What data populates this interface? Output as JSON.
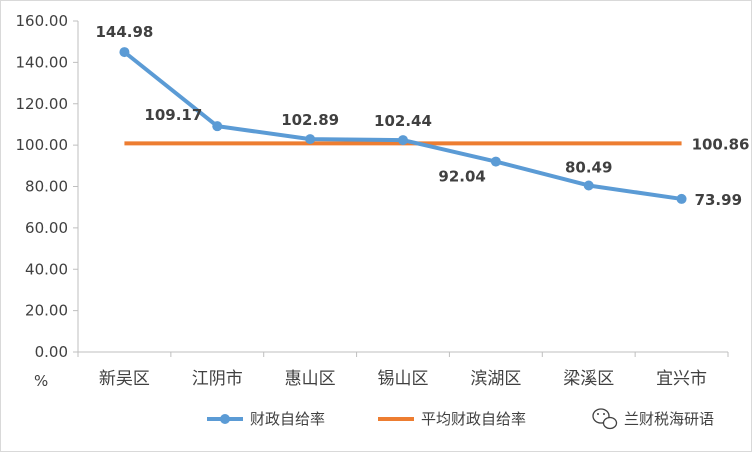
{
  "chart_data": {
    "type": "line",
    "categories": [
      "新吴区",
      "江阴市",
      "惠山区",
      "锡山区",
      "滨湖区",
      "梁溪区",
      "宜兴市"
    ],
    "series": [
      {
        "name": "财政自给率",
        "values": [
          144.98,
          109.17,
          102.89,
          102.44,
          92.04,
          80.49,
          73.99
        ],
        "labels": [
          "144.98",
          "109.17",
          "102.89",
          "102.44",
          "92.04",
          "80.49",
          "73.99"
        ],
        "color": "#5b9bd5",
        "marker": "circle"
      },
      {
        "name": "平均财政自给率",
        "values": [
          100.86,
          100.86,
          100.86,
          100.86,
          100.86,
          100.86,
          100.86
        ],
        "end_label": "100.86",
        "color": "#ed7d31"
      }
    ],
    "ylim": [
      0,
      160
    ],
    "yticks": [
      "0.00",
      "20.00",
      "40.00",
      "60.00",
      "80.00",
      "100.00",
      "120.00",
      "140.00",
      "160.00"
    ],
    "ytick_values": [
      0,
      20,
      40,
      60,
      80,
      100,
      120,
      140,
      160
    ],
    "yunit": "%",
    "grid": false,
    "legend": "bottom"
  },
  "watermark": {
    "text": "兰财税海研语",
    "icon": "wechat-icon"
  }
}
